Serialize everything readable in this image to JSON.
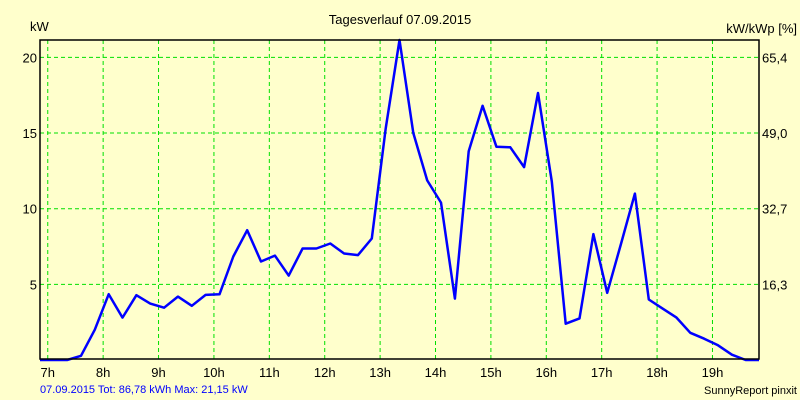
{
  "chart_data": {
    "type": "line",
    "title": "Tagesverlauf 07.09.2015",
    "ylabel": "kW",
    "ylabel_right": "kW/kWp [%]",
    "xlim": [
      6.86,
      19.84
    ],
    "ylim": [
      0,
      21.15
    ],
    "grid": true,
    "x_ticks": [
      7,
      8,
      9,
      10,
      11,
      12,
      13,
      14,
      15,
      16,
      17,
      18,
      19
    ],
    "x_tick_labels": [
      "7h",
      "8h",
      "9h",
      "10h",
      "11h",
      "12h",
      "13h",
      "14h",
      "15h",
      "16h",
      "17h",
      "18h",
      "19h"
    ],
    "y_ticks": [
      5,
      10,
      15,
      20
    ],
    "y_tick_labels": [
      "5",
      "10",
      "15",
      "20"
    ],
    "y_right_tick_labels": [
      "16,3",
      "32,7",
      "49,0",
      "65,4"
    ],
    "series": [
      {
        "name": "kW",
        "color": "#0000ff",
        "x": [
          6.86,
          7.1,
          7.35,
          7.6,
          7.85,
          8.1,
          8.35,
          8.6,
          8.85,
          9.1,
          9.35,
          9.6,
          9.85,
          10.1,
          10.35,
          10.6,
          10.85,
          11.1,
          11.35,
          11.6,
          11.85,
          12.1,
          12.35,
          12.6,
          12.85,
          13.1,
          13.35,
          13.6,
          13.85,
          14.1,
          14.35,
          14.6,
          14.85,
          15.1,
          15.35,
          15.6,
          15.85,
          16.1,
          16.35,
          16.6,
          16.85,
          17.1,
          17.35,
          17.6,
          17.85,
          18.1,
          18.35,
          18.6,
          18.85,
          19.1,
          19.35,
          19.6,
          19.84
        ],
        "values": [
          0,
          0,
          0,
          0.28,
          2.0,
          4.35,
          2.8,
          4.28,
          3.73,
          3.46,
          4.19,
          3.58,
          4.3,
          4.34,
          6.84,
          8.58,
          6.51,
          6.9,
          5.58,
          7.37,
          7.37,
          7.7,
          7.04,
          6.93,
          8.03,
          15.3,
          21.15,
          15.0,
          11.87,
          10.4,
          4.06,
          13.8,
          16.8,
          14.1,
          14.06,
          12.75,
          17.65,
          11.8,
          2.4,
          2.75,
          8.32,
          4.44,
          7.7,
          11.0,
          4.0,
          3.4,
          2.8,
          1.8,
          1.41,
          0.97,
          0.35,
          0,
          0
        ]
      }
    ],
    "grid_color": "#00e000",
    "background": "#ffffcc"
  },
  "footer": {
    "summary": "07.09.2015 Tot: 86,78 kWh Max: 21,15 kW",
    "credit": "SunnyReport pinxit"
  }
}
